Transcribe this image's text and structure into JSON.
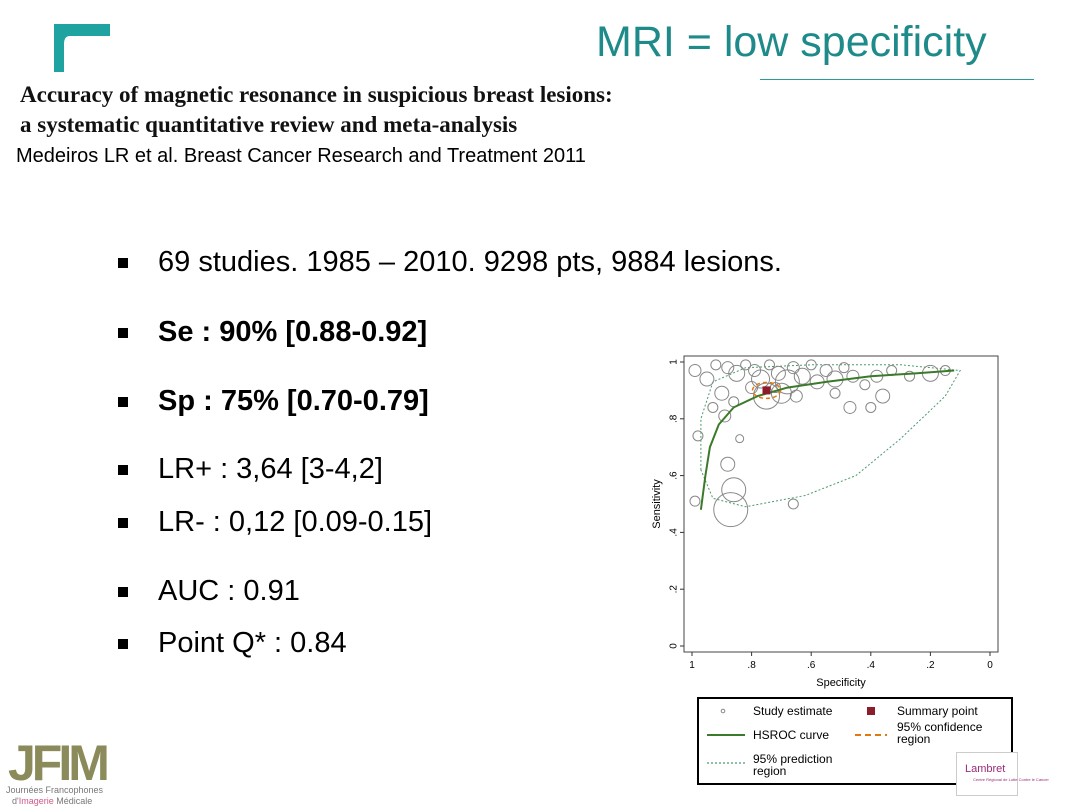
{
  "header": {
    "title": "MRI = low specificity",
    "paper_title_line1": "Accuracy of magnetic resonance in suspicious breast lesions:",
    "paper_title_line2": "a systematic quantitative review and meta-analysis",
    "citation": "Medeiros LR et al. Breast Cancer Research and Treatment 2011"
  },
  "bullets": [
    {
      "text": "69 studies. 1985 – 2010. 9298 pts, 9884 lesions.",
      "bold": false
    },
    {
      "text": "Se : 90% [0.88-0.92]",
      "bold": true
    },
    {
      "text": "Sp : 75% [0.70-0.79]",
      "bold": true
    },
    {
      "text": "LR+ : 3,64 [3-4,2]",
      "bold": false
    },
    {
      "text": "LR- : 0,12 [0.09-0.15]",
      "bold": false
    },
    {
      "text": "AUC : 0.91",
      "bold": false
    },
    {
      "text": "Point Q* : 0.84",
      "bold": false
    }
  ],
  "chart_data": {
    "type": "scatter",
    "xlabel": "Specificity",
    "ylabel": "Sensitivity",
    "xlim": [
      1,
      0
    ],
    "ylim": [
      0,
      1
    ],
    "x_ticks": [
      "1",
      ".8",
      ".6",
      ".4",
      ".2",
      "0"
    ],
    "y_ticks": [
      "0",
      ".2",
      ".4",
      ".6",
      ".8",
      "1"
    ],
    "study_points": [
      {
        "x": 0.99,
        "y": 0.97,
        "r": 6
      },
      {
        "x": 0.95,
        "y": 0.94,
        "r": 7
      },
      {
        "x": 0.92,
        "y": 0.99,
        "r": 5
      },
      {
        "x": 0.88,
        "y": 0.98,
        "r": 6
      },
      {
        "x": 0.85,
        "y": 0.96,
        "r": 8
      },
      {
        "x": 0.82,
        "y": 0.99,
        "r": 5
      },
      {
        "x": 0.79,
        "y": 0.97,
        "r": 6
      },
      {
        "x": 0.77,
        "y": 0.94,
        "r": 9
      },
      {
        "x": 0.74,
        "y": 0.99,
        "r": 5
      },
      {
        "x": 0.71,
        "y": 0.96,
        "r": 7
      },
      {
        "x": 0.68,
        "y": 0.93,
        "r": 12
      },
      {
        "x": 0.66,
        "y": 0.98,
        "r": 6
      },
      {
        "x": 0.63,
        "y": 0.95,
        "r": 8
      },
      {
        "x": 0.6,
        "y": 0.99,
        "r": 5
      },
      {
        "x": 0.58,
        "y": 0.93,
        "r": 7
      },
      {
        "x": 0.55,
        "y": 0.97,
        "r": 6
      },
      {
        "x": 0.52,
        "y": 0.94,
        "r": 8
      },
      {
        "x": 0.49,
        "y": 0.98,
        "r": 5
      },
      {
        "x": 0.46,
        "y": 0.95,
        "r": 6
      },
      {
        "x": 0.42,
        "y": 0.92,
        "r": 5
      },
      {
        "x": 0.38,
        "y": 0.95,
        "r": 6
      },
      {
        "x": 0.33,
        "y": 0.97,
        "r": 5
      },
      {
        "x": 0.27,
        "y": 0.95,
        "r": 5
      },
      {
        "x": 0.2,
        "y": 0.96,
        "r": 8
      },
      {
        "x": 0.15,
        "y": 0.97,
        "r": 5
      },
      {
        "x": 0.9,
        "y": 0.89,
        "r": 7
      },
      {
        "x": 0.86,
        "y": 0.86,
        "r": 5
      },
      {
        "x": 0.8,
        "y": 0.91,
        "r": 6
      },
      {
        "x": 0.72,
        "y": 0.91,
        "r": 5
      },
      {
        "x": 0.65,
        "y": 0.88,
        "r": 6
      },
      {
        "x": 0.52,
        "y": 0.89,
        "r": 5
      },
      {
        "x": 0.47,
        "y": 0.84,
        "r": 6
      },
      {
        "x": 0.4,
        "y": 0.84,
        "r": 5
      },
      {
        "x": 0.36,
        "y": 0.88,
        "r": 7
      },
      {
        "x": 0.93,
        "y": 0.84,
        "r": 5
      },
      {
        "x": 0.89,
        "y": 0.81,
        "r": 6
      },
      {
        "x": 0.84,
        "y": 0.73,
        "r": 4
      },
      {
        "x": 0.98,
        "y": 0.74,
        "r": 5
      },
      {
        "x": 0.88,
        "y": 0.64,
        "r": 7
      },
      {
        "x": 0.86,
        "y": 0.55,
        "r": 12
      },
      {
        "x": 0.87,
        "y": 0.48,
        "r": 17
      },
      {
        "x": 0.99,
        "y": 0.51,
        "r": 5
      },
      {
        "x": 0.66,
        "y": 0.5,
        "r": 5
      },
      {
        "x": 0.75,
        "y": 0.88,
        "r": 13
      },
      {
        "x": 0.7,
        "y": 0.89,
        "r": 10
      }
    ],
    "summary_point": {
      "x": 0.75,
      "y": 0.9
    },
    "hsroc_curve": [
      [
        0.97,
        0.48
      ],
      [
        0.955,
        0.6
      ],
      [
        0.94,
        0.7
      ],
      [
        0.91,
        0.78
      ],
      [
        0.86,
        0.84
      ],
      [
        0.78,
        0.88
      ],
      [
        0.68,
        0.91
      ],
      [
        0.55,
        0.93
      ],
      [
        0.4,
        0.95
      ],
      [
        0.25,
        0.96
      ],
      [
        0.12,
        0.97
      ]
    ],
    "prediction_region": [
      [
        0.97,
        0.62
      ],
      [
        0.97,
        0.8
      ],
      [
        0.93,
        0.93
      ],
      [
        0.82,
        0.98
      ],
      [
        0.6,
        0.99
      ],
      [
        0.3,
        0.99
      ],
      [
        0.1,
        0.97
      ],
      [
        0.15,
        0.88
      ],
      [
        0.3,
        0.73
      ],
      [
        0.45,
        0.6
      ],
      [
        0.62,
        0.53
      ],
      [
        0.82,
        0.49
      ],
      [
        0.93,
        0.52
      ],
      [
        0.97,
        0.62
      ]
    ],
    "legend": {
      "study_estimate": "Study estimate",
      "summary_point": "Summary point",
      "hsroc_curve": "HSROC curve",
      "confidence_region_1": "95% confidence",
      "confidence_region_2": "region",
      "prediction_region_1": "95% prediction",
      "prediction_region_2": "region"
    },
    "colors": {
      "hsroc": "#3a7a2a",
      "summary": "#8b1e2a",
      "confidence": "#e07a10",
      "prediction": "#4a9a6a",
      "points": "#888888"
    }
  },
  "footer": {
    "jfim_line1": "Journées Francophones",
    "jfim_line2_prefix": "d'",
    "jfim_line2_em": "Imagerie",
    "jfim_line2_suffix": " Médicale",
    "jfim_logo_text": "JFIM",
    "lambret_name": "Lambret",
    "lambret_sub": "Centre Régional de Lutte Contre le Cancer"
  }
}
